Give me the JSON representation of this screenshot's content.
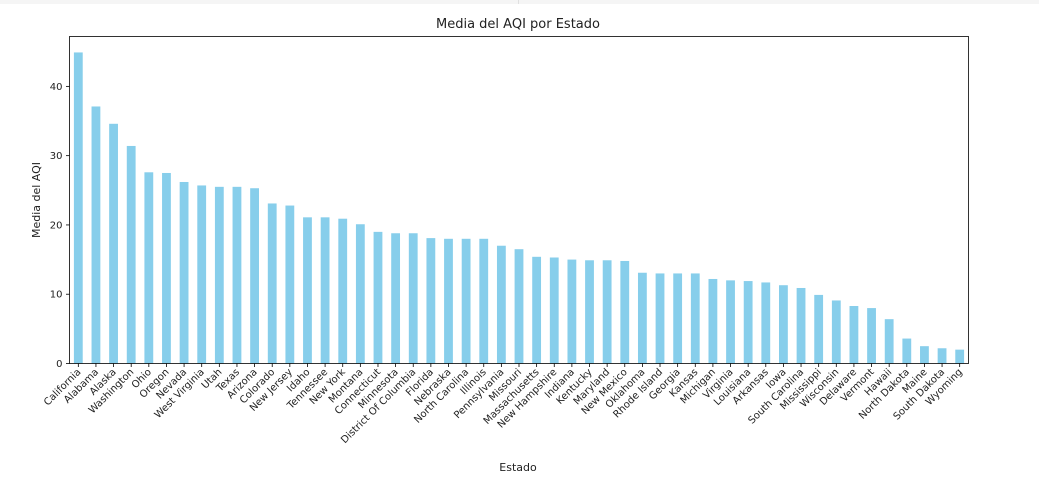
{
  "chart_data": {
    "type": "bar",
    "title": "Media del AQI por Estado",
    "xlabel": "Estado",
    "ylabel": "Media del AQI",
    "ylim": [
      0,
      47.2
    ],
    "yticks": [
      0,
      10,
      20,
      30,
      40
    ],
    "grid": false,
    "bar_color": "#87ceeb",
    "categories": [
      "California",
      "Alabama",
      "Alaska",
      "Washington",
      "Ohio",
      "Oregon",
      "Nevada",
      "West Virginia",
      "Utah",
      "Texas",
      "Arizona",
      "Colorado",
      "New Jersey",
      "Idaho",
      "Tennessee",
      "New York",
      "Montana",
      "Connecticut",
      "Minnesota",
      "District Of Columbia",
      "Florida",
      "Nebraska",
      "North Carolina",
      "Illinois",
      "Pennsylvania",
      "Missouri",
      "Massachusetts",
      "New Hampshire",
      "Indiana",
      "Kentucky",
      "Maryland",
      "New Mexico",
      "Oklahoma",
      "Rhode Island",
      "Georgia",
      "Kansas",
      "Michigan",
      "Virginia",
      "Louisiana",
      "Arkansas",
      "Iowa",
      "South Carolina",
      "Mississippi",
      "Wisconsin",
      "Delaware",
      "Vermont",
      "Hawaii",
      "North Dakota",
      "Maine",
      "South Dakota",
      "Wyoming"
    ],
    "values": [
      44.9,
      37.1,
      34.6,
      31.4,
      27.6,
      27.5,
      26.2,
      25.7,
      25.5,
      25.5,
      25.3,
      23.1,
      22.8,
      21.1,
      21.1,
      20.9,
      20.1,
      19.0,
      18.8,
      18.8,
      18.1,
      18.0,
      18.0,
      18.0,
      17.0,
      16.5,
      15.4,
      15.3,
      15.0,
      14.9,
      14.9,
      14.8,
      13.1,
      13.0,
      13.0,
      13.0,
      12.2,
      12.0,
      11.9,
      11.7,
      11.3,
      10.9,
      9.9,
      9.1,
      8.3,
      8.0,
      6.4,
      3.6,
      2.5,
      2.2,
      2.0
    ]
  }
}
